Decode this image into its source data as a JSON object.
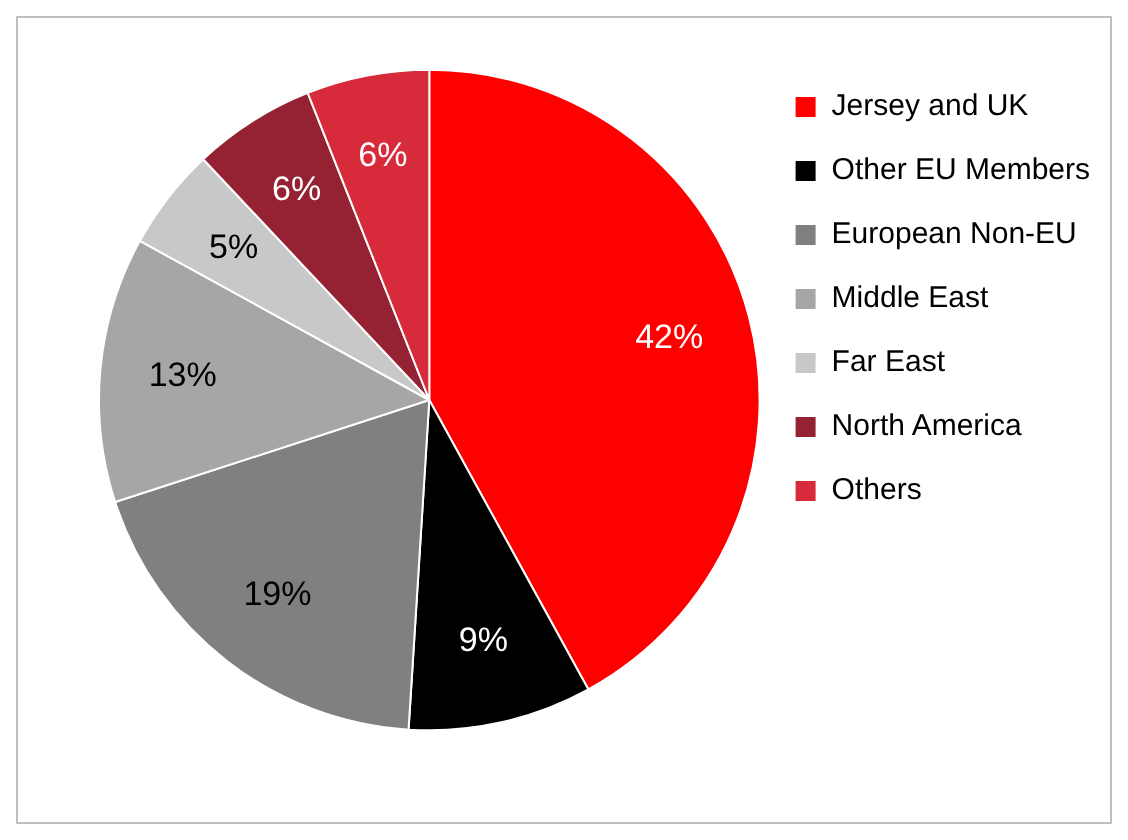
{
  "chart_data": {
    "type": "pie",
    "categories": [
      "Jersey and UK",
      "Other EU Members",
      "European Non-EU",
      "Middle East",
      "Far East",
      "North America",
      "Others"
    ],
    "values": [
      42,
      9,
      19,
      13,
      5,
      6,
      6
    ],
    "colors": [
      "#ff0000",
      "#000000",
      "#808080",
      "#a6a6a6",
      "#c8c8c8",
      "#952232",
      "#d72a3a"
    ],
    "value_labels": [
      "42%",
      "9%",
      "19%",
      "13%",
      "5%",
      "6%",
      "6%"
    ],
    "legend": "right"
  }
}
